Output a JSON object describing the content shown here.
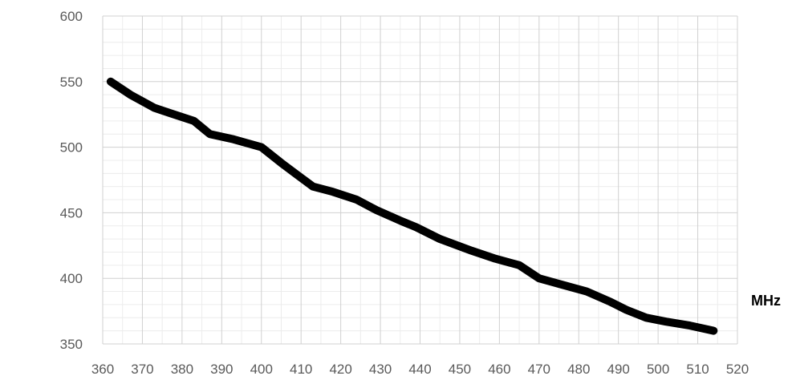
{
  "chart_data": {
    "type": "line",
    "title": "",
    "xlabel": "MHz",
    "ylabel": "",
    "xlim": [
      360,
      520
    ],
    "ylim": [
      350,
      600
    ],
    "x_ticks": [
      360,
      370,
      380,
      390,
      400,
      410,
      420,
      430,
      440,
      450,
      460,
      470,
      480,
      490,
      500,
      510,
      520
    ],
    "y_ticks": [
      350,
      400,
      450,
      500,
      550,
      600
    ],
    "grid": true,
    "series": [
      {
        "x": [
          362,
          367,
          373,
          377,
          383,
          387,
          393,
          400,
          405,
          409,
          413,
          418,
          424,
          429,
          435,
          439,
          445,
          453,
          459,
          465,
          470,
          476,
          482,
          488,
          492,
          497,
          502,
          508,
          514
        ],
        "y": [
          550,
          540,
          530,
          526,
          520,
          510,
          506,
          500,
          488,
          479,
          470,
          466,
          460,
          452,
          444,
          439,
          430,
          421,
          415,
          410,
          400,
          395,
          390,
          382,
          376,
          370,
          367,
          364,
          360
        ],
        "color": "#000000"
      }
    ]
  }
}
